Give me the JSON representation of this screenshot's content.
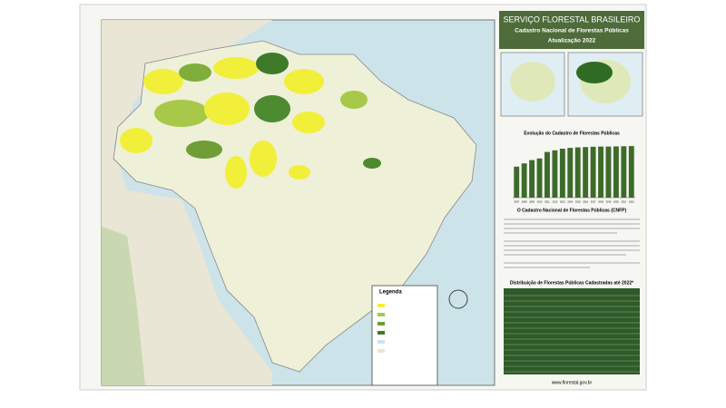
{
  "header": {
    "title": "SERVIÇO FLORESTAL BRASILEIRO",
    "subtitle": "Cadastro Nacional de Florestas Públicas",
    "update": "Atualização  2022"
  },
  "chart_data": {
    "type": "bar",
    "title": "Evolução do Cadastro de Florestas Públicas",
    "categories": [
      "2007",
      "2008",
      "2009",
      "2010",
      "2011",
      "2012",
      "2013",
      "2014",
      "2015",
      "2016",
      "2017",
      "2018",
      "2019",
      "2020",
      "2021",
      "2022"
    ],
    "values": [
      190,
      210,
      230,
      240,
      280,
      290,
      300,
      305,
      308,
      310,
      312,
      313,
      313,
      314,
      315,
      316
    ],
    "color": "#3d6b2a",
    "ylim": [
      0,
      350
    ]
  },
  "text_section": {
    "title": "O Cadastro Nacional de Florestas Públicas (CNFP)"
  },
  "table": {
    "title": "Distribuição de Florestas Públicas Cadastradas até 2022*"
  },
  "legend": {
    "title": "Legenda"
  },
  "footer": {
    "url": "www.florestal.gov.br"
  }
}
